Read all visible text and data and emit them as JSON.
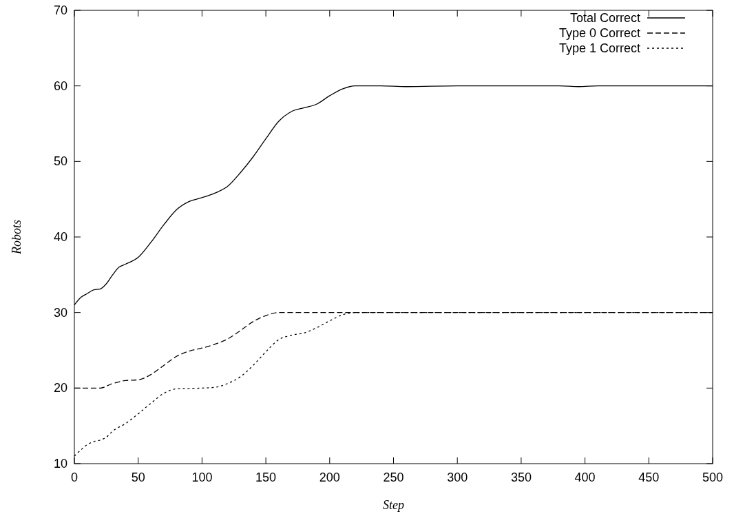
{
  "chart_data": {
    "type": "line",
    "xlabel": "Step",
    "ylabel": "Robots",
    "xlim": [
      0,
      500
    ],
    "ylim": [
      10,
      70
    ],
    "xticks": [
      0,
      50,
      100,
      150,
      200,
      250,
      300,
      350,
      400,
      450,
      500
    ],
    "yticks": [
      10,
      20,
      30,
      40,
      50,
      60,
      70
    ],
    "grid": false,
    "legend": "top right",
    "series": [
      {
        "name": "Total Correct",
        "color": "#000000",
        "line_style": "solid",
        "x": [
          0,
          5,
          10,
          15,
          20,
          25,
          30,
          35,
          40,
          50,
          60,
          70,
          80,
          90,
          100,
          110,
          120,
          130,
          140,
          150,
          160,
          170,
          180,
          190,
          200,
          210,
          220,
          240,
          260,
          300,
          380,
          395,
          410,
          500
        ],
        "values": [
          31,
          32,
          32.5,
          33,
          33.1,
          33.8,
          35,
          36,
          36.4,
          37.3,
          39.3,
          41.6,
          43.6,
          44.7,
          45.2,
          45.8,
          46.7,
          48.5,
          50.6,
          53,
          55.3,
          56.6,
          57.1,
          57.6,
          58.7,
          59.6,
          60,
          60,
          59.9,
          60,
          60,
          59.9,
          60,
          60
        ]
      },
      {
        "name": "Type 0 Correct",
        "color": "#000000",
        "line_style": "dashed",
        "x": [
          0,
          20,
          30,
          40,
          50,
          60,
          70,
          80,
          90,
          100,
          110,
          120,
          130,
          140,
          150,
          160,
          180,
          500
        ],
        "values": [
          20,
          20,
          20.6,
          21,
          21.1,
          21.8,
          23,
          24.2,
          24.9,
          25.3,
          25.8,
          26.5,
          27.6,
          28.8,
          29.6,
          30,
          30,
          30
        ]
      },
      {
        "name": "Type 1 Correct",
        "color": "#000000",
        "line_style": "dotted",
        "x": [
          0,
          5,
          10,
          15,
          20,
          25,
          30,
          40,
          50,
          60,
          70,
          80,
          100,
          110,
          120,
          130,
          140,
          150,
          160,
          170,
          180,
          190,
          200,
          210,
          220,
          500
        ],
        "values": [
          11,
          11.8,
          12.5,
          12.9,
          13.1,
          13.5,
          14.3,
          15.3,
          16.6,
          18,
          19.3,
          19.9,
          20,
          20.1,
          20.6,
          21.5,
          23,
          24.8,
          26.4,
          27,
          27.3,
          28,
          28.9,
          29.7,
          30,
          30
        ]
      }
    ]
  }
}
